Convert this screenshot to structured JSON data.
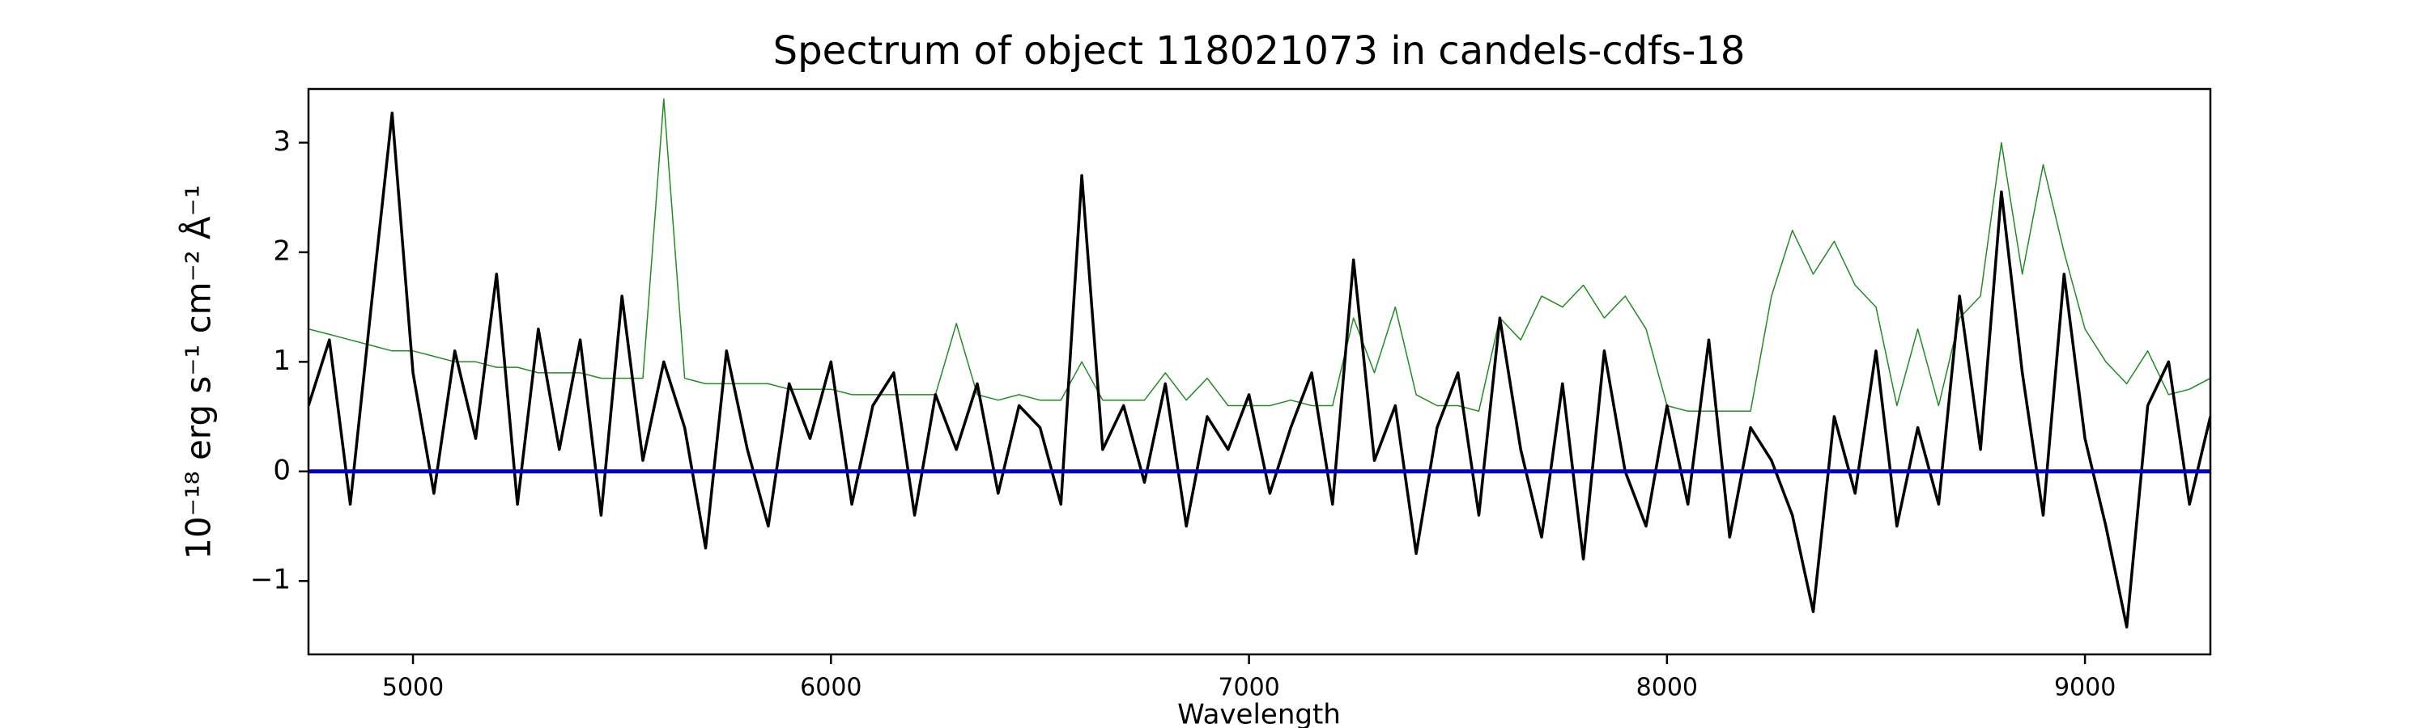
{
  "chart_data": {
    "type": "line",
    "title": "Spectrum of object 118021073 in candels-cdfs-18",
    "xlabel": "Wavelength",
    "ylabel": "10⁻¹⁸ erg s⁻¹ cm⁻² Å⁻¹",
    "x": [
      4750,
      4800,
      4850,
      4900,
      4950,
      5000,
      5050,
      5100,
      5150,
      5200,
      5250,
      5300,
      5350,
      5400,
      5450,
      5500,
      5550,
      5600,
      5650,
      5700,
      5750,
      5800,
      5850,
      5900,
      5950,
      6000,
      6050,
      6100,
      6150,
      6200,
      6250,
      6300,
      6350,
      6400,
      6450,
      6500,
      6550,
      6600,
      6650,
      6700,
      6750,
      6800,
      6850,
      6900,
      6950,
      7000,
      7050,
      7100,
      7150,
      7200,
      7250,
      7300,
      7350,
      7400,
      7450,
      7500,
      7550,
      7600,
      7650,
      7700,
      7750,
      7800,
      7850,
      7900,
      7950,
      8000,
      8050,
      8100,
      8150,
      8200,
      8250,
      8300,
      8350,
      8400,
      8450,
      8500,
      8550,
      8600,
      8650,
      8700,
      8750,
      8800,
      8850,
      8900,
      8950,
      9000,
      9050,
      9100,
      9150,
      9200,
      9250,
      9300
    ],
    "series": [
      {
        "color": "#228b22",
        "values": [
          1.3,
          1.25,
          1.2,
          1.15,
          1.1,
          1.1,
          1.05,
          1.0,
          1.0,
          0.95,
          0.95,
          0.9,
          0.9,
          0.9,
          0.85,
          0.85,
          0.85,
          3.4,
          0.85,
          0.8,
          0.8,
          0.8,
          0.8,
          0.75,
          0.75,
          0.75,
          0.7,
          0.7,
          0.7,
          0.7,
          0.7,
          1.35,
          0.7,
          0.65,
          0.7,
          0.65,
          0.65,
          1.0,
          0.65,
          0.65,
          0.65,
          0.9,
          0.65,
          0.85,
          0.6,
          0.6,
          0.6,
          0.65,
          0.6,
          0.6,
          1.4,
          0.9,
          1.5,
          0.7,
          0.6,
          0.6,
          0.55,
          1.4,
          1.2,
          1.6,
          1.5,
          1.7,
          1.4,
          1.6,
          1.3,
          0.6,
          0.55,
          0.55,
          0.55,
          0.55,
          1.6,
          2.2,
          1.8,
          2.1,
          1.7,
          1.5,
          0.6,
          1.3,
          0.6,
          1.4,
          1.6,
          3.0,
          1.8,
          2.8,
          2.0,
          1.3,
          1.0,
          0.8,
          1.1,
          0.7,
          0.75,
          0.85
        ]
      },
      {
        "color": "#000000",
        "values": [
          0.6,
          1.2,
          -0.3,
          1.5,
          3.27,
          0.9,
          -0.2,
          1.1,
          0.3,
          1.8,
          -0.3,
          1.3,
          0.2,
          1.2,
          -0.4,
          1.6,
          0.1,
          1.0,
          0.4,
          -0.7,
          1.1,
          0.2,
          -0.5,
          0.8,
          0.3,
          1.0,
          -0.3,
          0.6,
          0.9,
          -0.4,
          0.7,
          0.2,
          0.8,
          -0.2,
          0.6,
          0.4,
          -0.3,
          2.7,
          0.2,
          0.6,
          -0.1,
          0.8,
          -0.5,
          0.5,
          0.2,
          0.7,
          -0.2,
          0.4,
          0.9,
          -0.3,
          1.93,
          0.1,
          0.6,
          -0.75,
          0.4,
          0.9,
          -0.4,
          1.4,
          0.2,
          -0.6,
          0.8,
          -0.8,
          1.1,
          0.0,
          -0.5,
          0.6,
          -0.3,
          1.2,
          -0.6,
          0.4,
          0.1,
          -0.4,
          -1.28,
          0.5,
          -0.2,
          1.1,
          -0.5,
          0.4,
          -0.3,
          1.6,
          0.2,
          2.55,
          0.9,
          -0.4,
          1.8,
          0.3,
          -0.5,
          -1.42,
          0.6,
          1.0,
          -0.3,
          0.5
        ]
      },
      {
        "color": "#0000cc",
        "values": [
          0,
          0,
          0,
          0,
          0,
          0,
          0,
          0,
          0,
          0,
          0,
          0,
          0,
          0,
          0,
          0,
          0,
          0,
          0,
          0,
          0,
          0,
          0,
          0,
          0,
          0,
          0,
          0,
          0,
          0,
          0,
          0,
          0,
          0,
          0,
          0,
          0,
          0,
          0,
          0,
          0,
          0,
          0,
          0,
          0,
          0,
          0,
          0,
          0,
          0,
          0,
          0,
          0,
          0,
          0,
          0,
          0,
          0,
          0,
          0,
          0,
          0,
          0,
          0,
          0,
          0,
          0,
          0,
          0,
          0,
          0,
          0,
          0,
          0,
          0,
          0,
          0,
          0,
          0,
          0,
          0,
          0,
          0,
          0,
          0,
          0,
          0,
          0,
          0,
          0,
          0,
          0
        ]
      }
    ],
    "xlim": [
      4750,
      9300
    ],
    "xticks": [
      5000,
      6000,
      7000,
      8000,
      9000
    ],
    "ylim": [
      -1.67,
      3.49
    ],
    "yticks": [
      {
        "value": -1,
        "label": "−1"
      },
      0,
      1,
      2,
      3
    ]
  }
}
